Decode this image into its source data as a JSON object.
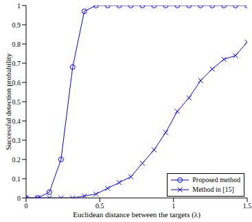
{
  "chart_data": {
    "type": "line",
    "x_label": "Euclidean distance between the targets (λ)",
    "y_label": "Successful detection probability",
    "x": [
      0,
      0.079,
      0.158,
      0.237,
      0.316,
      0.395,
      0.474,
      0.553,
      0.632,
      0.711,
      0.789,
      0.868,
      0.947,
      1.026,
      1.105,
      1.184,
      1.263,
      1.342,
      1.421,
      1.5
    ],
    "series": [
      {
        "name": "Proposed method",
        "color": "#0000ff",
        "marker": "o",
        "line_style": "solid",
        "values": [
          0,
          0,
          0.03,
          0.2,
          0.68,
          0.97,
          1,
          1,
          1,
          1,
          1,
          1,
          1,
          1,
          1,
          1,
          1,
          1,
          1,
          1
        ]
      },
      {
        "name": "Method in [15]",
        "color": "#0000ff",
        "marker": "x",
        "line_style": "solid",
        "values": [
          0,
          0,
          0,
          0,
          0,
          0.01,
          0.02,
          0.05,
          0.08,
          0.11,
          0.18,
          0.25,
          0.34,
          0.45,
          0.52,
          0.61,
          0.67,
          0.72,
          0.74,
          0.81
        ]
      }
    ],
    "xlim": [
      0,
      1.5
    ],
    "ylim": [
      0,
      1
    ],
    "xticks": [
      0,
      0.5,
      1,
      1.5
    ],
    "yticks": [
      0,
      0.1,
      0.2,
      0.3,
      0.4,
      0.5,
      0.6,
      0.7,
      0.8,
      0.9,
      1
    ],
    "legend": "lower right",
    "grid": false
  }
}
